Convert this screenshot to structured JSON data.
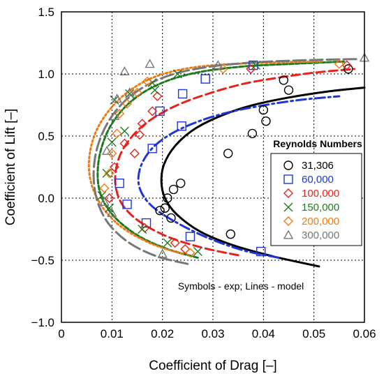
{
  "chart_data": {
    "type": "scatter",
    "xlabel": "Coefficient of Drag [–]",
    "ylabel": "Coefficient of Lift [–]",
    "xlim": [
      0,
      0.06
    ],
    "ylim": [
      -1.0,
      1.5
    ],
    "xticks": [
      "0",
      "0.01",
      "0.02",
      "0.03",
      "0.04",
      "0.05",
      "0.06"
    ],
    "yticks": [
      "−1.0",
      "−0.5",
      "0.0",
      "0.5",
      "1.0",
      "1.5"
    ],
    "grid": true,
    "legend_title": "Reynolds Numbers",
    "legend_position": "right",
    "annotation": "Symbols - exp; Lines - model",
    "series": [
      {
        "name": "31,306",
        "color": "#000000",
        "marker": "circle",
        "dash": "solid",
        "points": [
          [
            0.0205,
            -0.08
          ],
          [
            0.021,
            0.0
          ],
          [
            0.0222,
            0.07
          ],
          [
            0.0217,
            -0.16
          ],
          [
            0.0236,
            0.12
          ],
          [
            0.0195,
            -0.1
          ],
          [
            0.033,
            0.36
          ],
          [
            0.0378,
            0.52
          ],
          [
            0.0405,
            0.62
          ],
          [
            0.04,
            0.71
          ],
          [
            0.044,
            0.95
          ],
          [
            0.045,
            0.87
          ],
          [
            0.0568,
            1.04
          ],
          [
            0.0335,
            -0.29
          ]
        ],
        "model": [
          [
            0.051,
            -0.55
          ],
          [
            0.042,
            -0.47
          ],
          [
            0.034,
            -0.38
          ],
          [
            0.0275,
            -0.27
          ],
          [
            0.0228,
            -0.13
          ],
          [
            0.0205,
            0.0
          ],
          [
            0.0198,
            0.13
          ],
          [
            0.0203,
            0.27
          ],
          [
            0.0225,
            0.42
          ],
          [
            0.0265,
            0.56
          ],
          [
            0.032,
            0.67
          ],
          [
            0.038,
            0.75
          ],
          [
            0.045,
            0.81
          ],
          [
            0.053,
            0.86
          ],
          [
            0.06,
            0.89
          ]
        ]
      },
      {
        "name": "60,000",
        "color": "#1f35d6",
        "marker": "square",
        "dash": "dashdot",
        "points": [
          [
            0.0115,
            0.12
          ],
          [
            0.013,
            -0.05
          ],
          [
            0.0168,
            -0.2
          ],
          [
            0.018,
            0.4
          ],
          [
            0.0195,
            0.7
          ],
          [
            0.0238,
            0.58
          ],
          [
            0.024,
            0.84
          ],
          [
            0.0255,
            -0.31
          ],
          [
            0.0285,
            0.96
          ],
          [
            0.0395,
            -0.43
          ],
          [
            0.038,
            1.07
          ]
        ],
        "model": [
          [
            0.043,
            -0.48
          ],
          [
            0.036,
            -0.42
          ],
          [
            0.029,
            -0.32
          ],
          [
            0.0225,
            -0.19
          ],
          [
            0.0178,
            -0.06
          ],
          [
            0.0155,
            0.08
          ],
          [
            0.0155,
            0.23
          ],
          [
            0.0175,
            0.38
          ],
          [
            0.021,
            0.5
          ],
          [
            0.026,
            0.6
          ],
          [
            0.032,
            0.68
          ],
          [
            0.039,
            0.74
          ],
          [
            0.047,
            0.79
          ],
          [
            0.055,
            0.82
          ]
        ]
      },
      {
        "name": "100,000",
        "color": "#e8211a",
        "marker": "diamond",
        "dash": "dash",
        "points": [
          [
            0.0095,
            0.0
          ],
          [
            0.0105,
            0.25
          ],
          [
            0.0125,
            0.44
          ],
          [
            0.0145,
            0.36
          ],
          [
            0.0155,
            0.51
          ],
          [
            0.016,
            0.6
          ],
          [
            0.018,
            0.7
          ],
          [
            0.019,
            0.82
          ],
          [
            0.0165,
            -0.24
          ],
          [
            0.0225,
            -0.36
          ],
          [
            0.0245,
            -0.41
          ],
          [
            0.0375,
            1.04
          ],
          [
            0.0565,
            1.07
          ]
        ],
        "model": [
          [
            0.035,
            -0.46
          ],
          [
            0.028,
            -0.4
          ],
          [
            0.021,
            -0.31
          ],
          [
            0.0155,
            -0.19
          ],
          [
            0.0122,
            -0.06
          ],
          [
            0.0108,
            0.08
          ],
          [
            0.0108,
            0.23
          ],
          [
            0.012,
            0.38
          ],
          [
            0.0145,
            0.52
          ],
          [
            0.018,
            0.64
          ],
          [
            0.023,
            0.75
          ],
          [
            0.029,
            0.84
          ],
          [
            0.036,
            0.92
          ],
          [
            0.043,
            0.97
          ],
          [
            0.05,
            1.01
          ],
          [
            0.058,
            1.04
          ]
        ]
      },
      {
        "name": "150,000",
        "color": "#1e7a1e",
        "marker": "x",
        "dash": "shortdash",
        "points": [
          [
            0.008,
            0.02
          ],
          [
            0.009,
            0.2
          ],
          [
            0.01,
            0.45
          ],
          [
            0.0105,
            0.79
          ],
          [
            0.0125,
            0.54
          ],
          [
            0.0135,
            0.84
          ],
          [
            0.016,
            -0.25
          ],
          [
            0.018,
            0.93
          ],
          [
            0.0185,
            0.87
          ],
          [
            0.021,
            -0.36
          ],
          [
            0.023,
            1.0
          ],
          [
            0.027,
            -0.43
          ],
          [
            0.0385,
            1.07
          ],
          [
            0.0095,
            -0.08
          ]
        ],
        "model": [
          [
            0.027,
            -0.48
          ],
          [
            0.021,
            -0.41
          ],
          [
            0.0155,
            -0.31
          ],
          [
            0.0112,
            -0.18
          ],
          [
            0.0085,
            -0.04
          ],
          [
            0.0073,
            0.11
          ],
          [
            0.0073,
            0.28
          ],
          [
            0.0082,
            0.44
          ],
          [
            0.01,
            0.6
          ],
          [
            0.013,
            0.75
          ],
          [
            0.017,
            0.87
          ],
          [
            0.022,
            0.96
          ],
          [
            0.028,
            1.02
          ],
          [
            0.036,
            1.06
          ],
          [
            0.045,
            1.08
          ],
          [
            0.056,
            1.1
          ]
        ]
      },
      {
        "name": "200,000",
        "color": "#f07a10",
        "marker": "diamond",
        "dash": "dot",
        "points": [
          [
            0.0085,
            0.08
          ],
          [
            0.0095,
            0.2
          ],
          [
            0.01,
            0.36
          ],
          [
            0.011,
            0.52
          ],
          [
            0.0115,
            0.68
          ],
          [
            0.013,
            0.76
          ],
          [
            0.015,
            0.85
          ],
          [
            0.017,
            0.94
          ],
          [
            0.0255,
            -0.44
          ],
          [
            0.032,
            1.04
          ],
          [
            0.055,
            1.08
          ]
        ],
        "model": [
          [
            0.024,
            -0.45
          ],
          [
            0.018,
            -0.37
          ],
          [
            0.0125,
            -0.25
          ],
          [
            0.0088,
            -0.11
          ],
          [
            0.0065,
            0.05
          ],
          [
            0.0055,
            0.21
          ],
          [
            0.0057,
            0.38
          ],
          [
            0.007,
            0.55
          ],
          [
            0.0095,
            0.71
          ],
          [
            0.013,
            0.85
          ],
          [
            0.0175,
            0.96
          ],
          [
            0.023,
            1.03
          ],
          [
            0.03,
            1.07
          ],
          [
            0.04,
            1.09
          ],
          [
            0.052,
            1.1
          ]
        ]
      },
      {
        "name": "300,000",
        "color": "#777777",
        "marker": "triangle",
        "dash": "longdash",
        "points": [
          [
            0.0085,
            -0.03
          ],
          [
            0.009,
            0.38
          ],
          [
            0.01,
            -0.12
          ],
          [
            0.0105,
            0.66
          ],
          [
            0.011,
            0.8
          ],
          [
            0.0125,
            1.02
          ],
          [
            0.0135,
            0.85
          ],
          [
            0.0175,
            1.08
          ],
          [
            0.02,
            -0.45
          ],
          [
            0.031,
            1.07
          ],
          [
            0.06,
            1.13
          ]
        ],
        "model": [
          [
            0.025,
            -0.53
          ],
          [
            0.019,
            -0.47
          ],
          [
            0.0138,
            -0.37
          ],
          [
            0.0098,
            -0.23
          ],
          [
            0.0075,
            -0.07
          ],
          [
            0.0065,
            0.1
          ],
          [
            0.0065,
            0.28
          ],
          [
            0.0075,
            0.46
          ],
          [
            0.0095,
            0.63
          ],
          [
            0.0125,
            0.78
          ],
          [
            0.0165,
            0.9
          ],
          [
            0.0215,
            0.99
          ],
          [
            0.028,
            1.05
          ],
          [
            0.037,
            1.09
          ],
          [
            0.048,
            1.11
          ],
          [
            0.059,
            1.12
          ]
        ]
      }
    ]
  }
}
